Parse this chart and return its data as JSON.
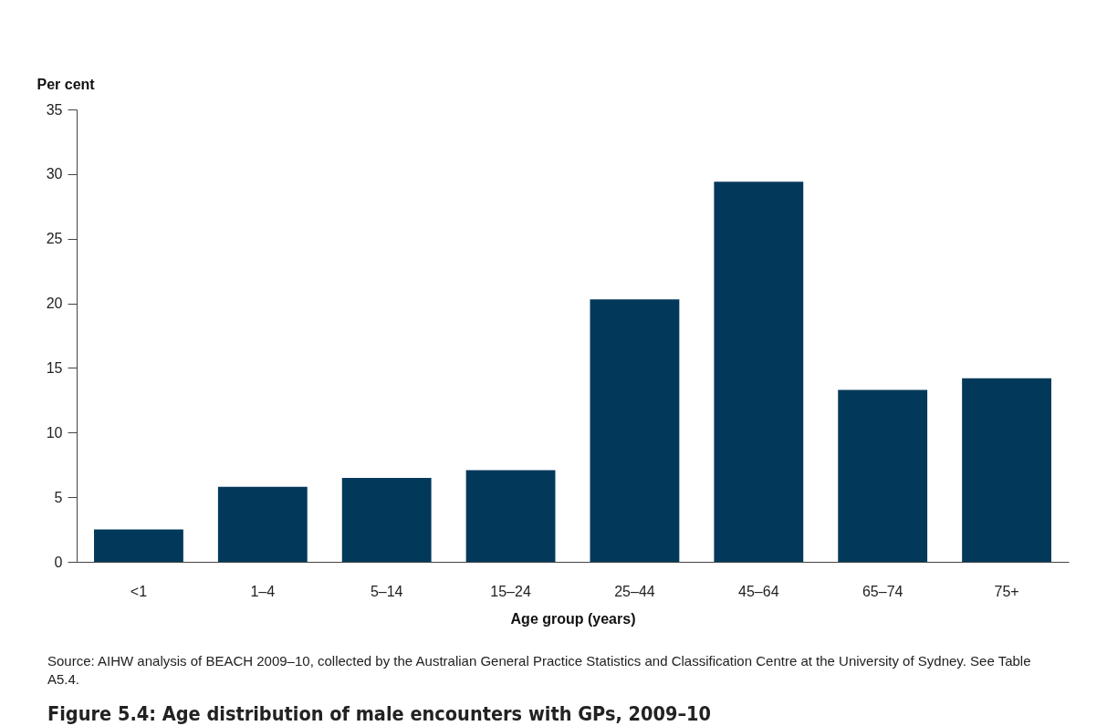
{
  "chart_data": {
    "type": "bar",
    "title": "Figure 5.4: Age distribution of male encounters with GPs, 2009–10",
    "xlabel": "Age group (years)",
    "ylabel": "Per cent",
    "categories": [
      "<1",
      "1–4",
      "5–14",
      "15–24",
      "25–44",
      "45–64",
      "65–74",
      "75+"
    ],
    "values": [
      2.5,
      5.8,
      6.5,
      7.1,
      20.3,
      29.4,
      13.3,
      14.2
    ],
    "color": "#02395a",
    "ylim": [
      0,
      35
    ],
    "yticks": [
      0,
      5,
      10,
      15,
      20,
      25,
      30,
      35
    ],
    "grid": false,
    "annotations": [
      "Source: AIHW analysis of BEACH 2009–10, collected by the Australian General Practice Statistics and Classification Centre at the University of Sydney. See Table A5.4."
    ]
  }
}
